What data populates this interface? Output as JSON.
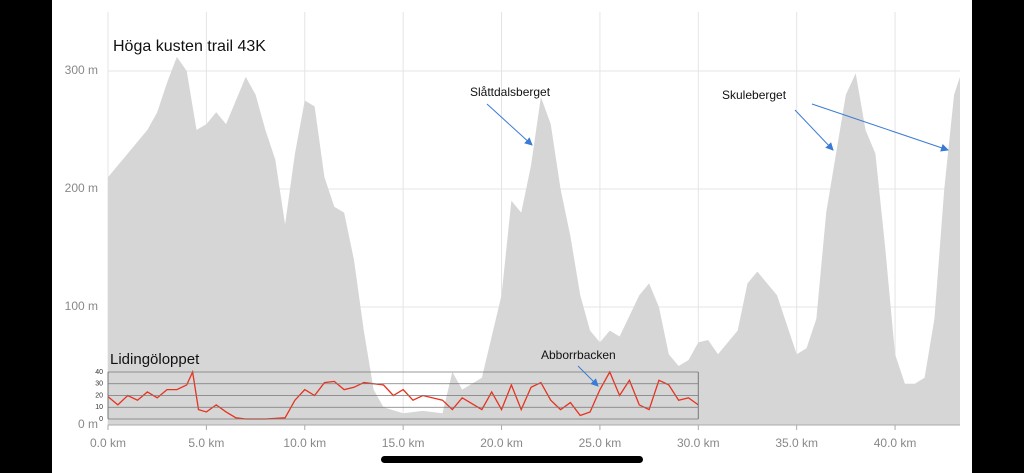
{
  "chart_data": [
    {
      "type": "area",
      "title": "Höga kusten trail 43K",
      "color": "#d6d6d6",
      "grid": true,
      "x": [
        0,
        0.5,
        1,
        1.5,
        2,
        2.5,
        3,
        3.5,
        4,
        4.5,
        5,
        5.5,
        6,
        6.5,
        7,
        7.5,
        8,
        8.5,
        9,
        9.5,
        10,
        10.5,
        11,
        11.5,
        12,
        12.5,
        13,
        13.5,
        14,
        15,
        16,
        17,
        17.5,
        18,
        19,
        20,
        20.5,
        21,
        21.5,
        22,
        22.5,
        23,
        23.5,
        24,
        24.5,
        25,
        25.5,
        26,
        27,
        27.5,
        28,
        28.5,
        29,
        29.5,
        30,
        30.5,
        31,
        32,
        32.5,
        33,
        34,
        35,
        35.5,
        36,
        36.5,
        37,
        37.5,
        38,
        38.5,
        39,
        39.5,
        40,
        40.5,
        41,
        41.5,
        42,
        42.5,
        43,
        43.3
      ],
      "values": [
        210,
        220,
        230,
        240,
        250,
        265,
        290,
        312,
        300,
        250,
        255,
        265,
        255,
        275,
        295,
        280,
        250,
        225,
        170,
        230,
        275,
        270,
        210,
        185,
        180,
        140,
        80,
        30,
        15,
        10,
        12,
        10,
        45,
        30,
        40,
        110,
        190,
        180,
        220,
        278,
        255,
        200,
        160,
        110,
        80,
        70,
        80,
        75,
        110,
        120,
        100,
        60,
        50,
        55,
        70,
        72,
        60,
        80,
        120,
        130,
        110,
        60,
        65,
        90,
        180,
        230,
        280,
        298,
        250,
        230,
        150,
        60,
        35,
        35,
        40,
        90,
        200,
        280,
        295
      ],
      "xlim": [
        0,
        43.3
      ],
      "ylim": [
        0,
        350
      ],
      "xticks": [
        {
          "value": 0,
          "label": "0.0 km"
        },
        {
          "value": 5,
          "label": "5.0 km"
        },
        {
          "value": 10,
          "label": "10.0 km"
        },
        {
          "value": 15,
          "label": "15.0 km"
        },
        {
          "value": 20,
          "label": "20.0 km"
        },
        {
          "value": 25,
          "label": "25.0 km"
        },
        {
          "value": 30,
          "label": "30.0 km"
        },
        {
          "value": 35,
          "label": "35.0 km"
        },
        {
          "value": 40,
          "label": "40.0 km"
        }
      ],
      "yticks": [
        {
          "value": 0,
          "label": "0 m"
        },
        {
          "value": 100,
          "label": "100 m"
        },
        {
          "value": 200,
          "label": "200 m"
        },
        {
          "value": 300,
          "label": "300 m"
        }
      ],
      "annotations": [
        "Slåttdalsberget",
        "Skuleberget"
      ]
    },
    {
      "type": "line",
      "title": "Lidingöloppet",
      "color": "#e8321e",
      "grid": true,
      "x": [
        0,
        0.5,
        1,
        1.5,
        2,
        2.5,
        3,
        3.5,
        4,
        4.3,
        4.6,
        5,
        5.5,
        6,
        6.5,
        7,
        7.5,
        8,
        9,
        9.5,
        10,
        10.5,
        11,
        11.5,
        12,
        12.5,
        13,
        14,
        14.5,
        15,
        15.5,
        16,
        17,
        17.5,
        18,
        19,
        19.5,
        20,
        20.5,
        21,
        21.5,
        22,
        22.5,
        23,
        23.5,
        24,
        24.5,
        25,
        25.5,
        26,
        26.5,
        27,
        27.5,
        28,
        28.5,
        29,
        29.5,
        30
      ],
      "values": [
        19,
        12,
        20,
        16,
        23,
        18,
        25,
        25,
        29,
        40,
        8,
        6,
        12,
        6,
        1,
        0,
        0,
        0,
        1,
        16,
        25,
        20,
        31,
        32,
        25,
        27,
        31,
        29,
        20,
        25,
        16,
        20,
        16,
        8,
        18,
        8,
        23,
        8,
        29,
        8,
        27,
        31,
        16,
        8,
        14,
        3,
        6,
        25,
        40,
        20,
        33,
        12,
        8,
        33,
        29,
        16,
        18,
        12
      ],
      "xlim": [
        0,
        43.3
      ],
      "ylim": [
        0,
        40
      ],
      "yticks": [
        0,
        10,
        20,
        30,
        40
      ],
      "annotations": [
        "Abborrbacken"
      ]
    }
  ]
}
